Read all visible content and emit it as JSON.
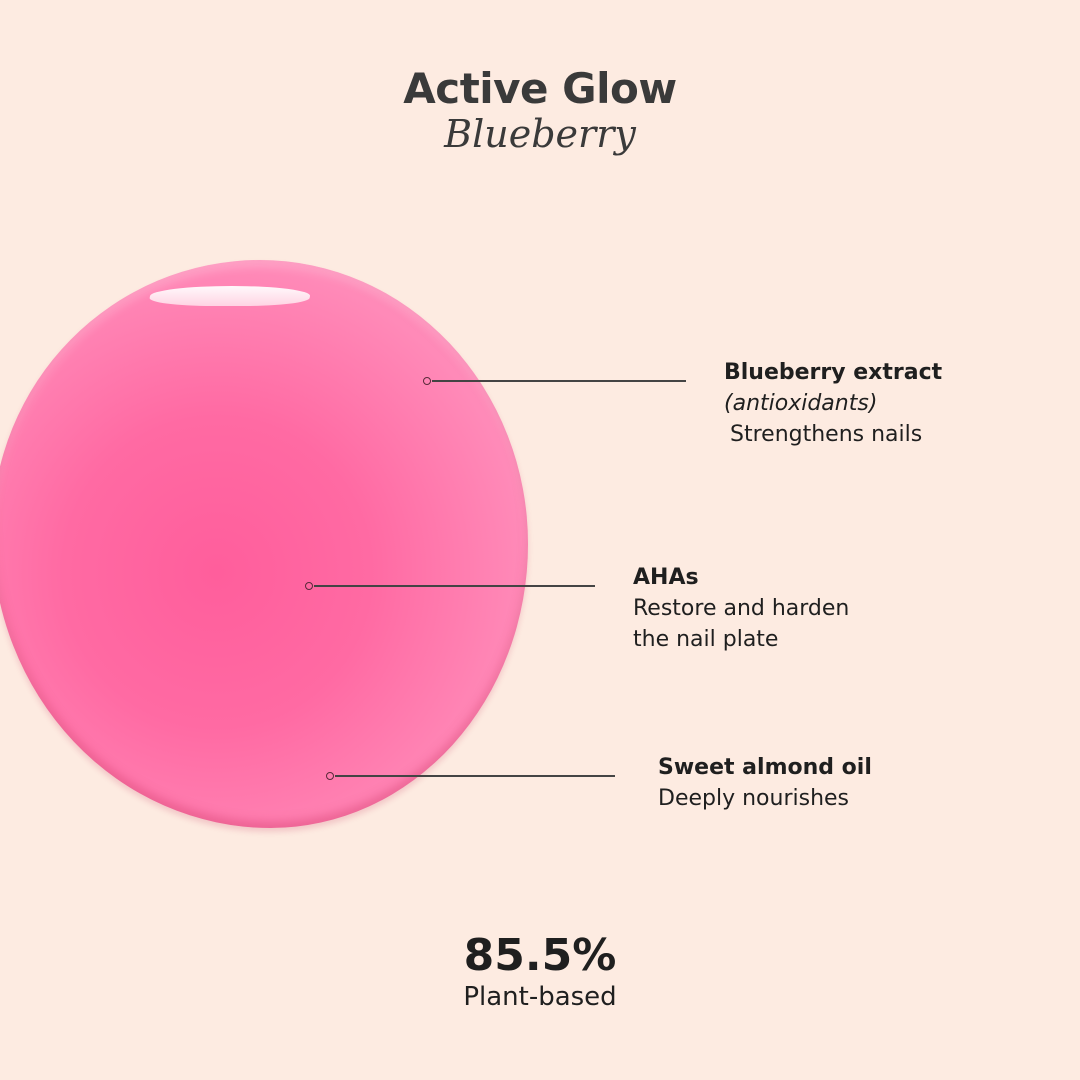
{
  "header": {
    "title": "Active Glow",
    "subtitle": "Blueberry"
  },
  "colors": {
    "background": "#fdebe1",
    "drop": "#ff6aa3",
    "text": "#1f1f1f"
  },
  "callouts": [
    {
      "name": "Blueberry extract",
      "note": "(antioxidants)",
      "desc": "Strengthens nails"
    },
    {
      "name": "AHAs",
      "desc_line1": "Restore and harden",
      "desc_line2": "the nail plate"
    },
    {
      "name": "Sweet almond oil",
      "desc": "Deeply nourishes"
    }
  ],
  "stat": {
    "value": "85.5%",
    "label": "Plant-based"
  }
}
